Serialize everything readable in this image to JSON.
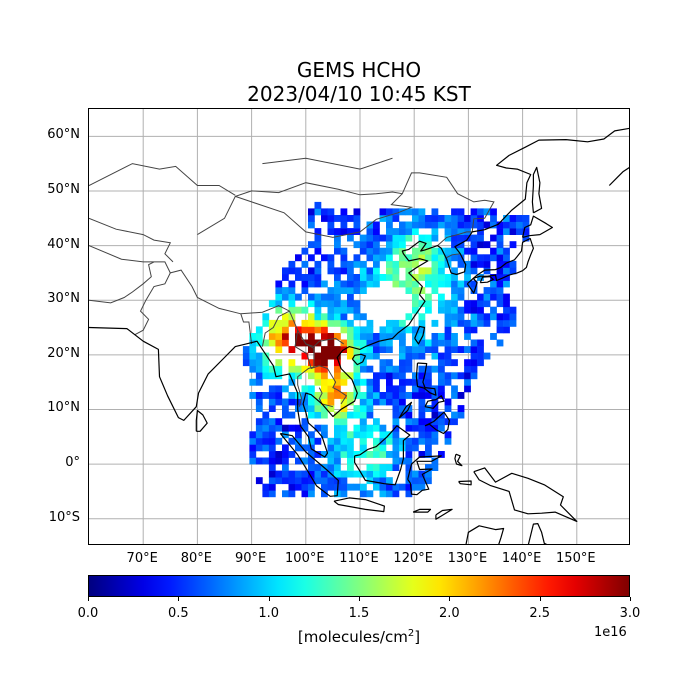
{
  "figure": {
    "title_line1": "GEMS HCHO",
    "title_line2": "2023/04/10 10:45 KST"
  },
  "map": {
    "lon_range": [
      60,
      160
    ],
    "lat_range": [
      -15,
      65
    ],
    "lat_ticks": [
      {
        "value": 60,
        "label": "60°N"
      },
      {
        "value": 50,
        "label": "50°N"
      },
      {
        "value": 40,
        "label": "40°N"
      },
      {
        "value": 30,
        "label": "30°N"
      },
      {
        "value": 20,
        "label": "20°N"
      },
      {
        "value": 10,
        "label": "10°N"
      },
      {
        "value": 0,
        "label": "0°"
      },
      {
        "value": -10,
        "label": "10°S"
      }
    ],
    "lon_ticks": [
      {
        "value": 70,
        "label": "70°E"
      },
      {
        "value": 80,
        "label": "80°E"
      },
      {
        "value": 90,
        "label": "90°E"
      },
      {
        "value": 100,
        "label": "100°E"
      },
      {
        "value": 110,
        "label": "110°E"
      },
      {
        "value": 120,
        "label": "120°E"
      },
      {
        "value": 130,
        "label": "130°E"
      },
      {
        "value": 140,
        "label": "140°E"
      },
      {
        "value": 150,
        "label": "150°E"
      }
    ],
    "gridlines": true,
    "colormap": "jet"
  },
  "colorbar": {
    "range": [
      0.0,
      3.0
    ],
    "ticks": [
      "0.0",
      "0.5",
      "1.0",
      "1.5",
      "2.0",
      "2.5",
      "3.0"
    ],
    "exponent_label": "1e16",
    "label_prefix": "[molecules/cm",
    "label_sup": "2",
    "label_suffix": "]"
  }
}
